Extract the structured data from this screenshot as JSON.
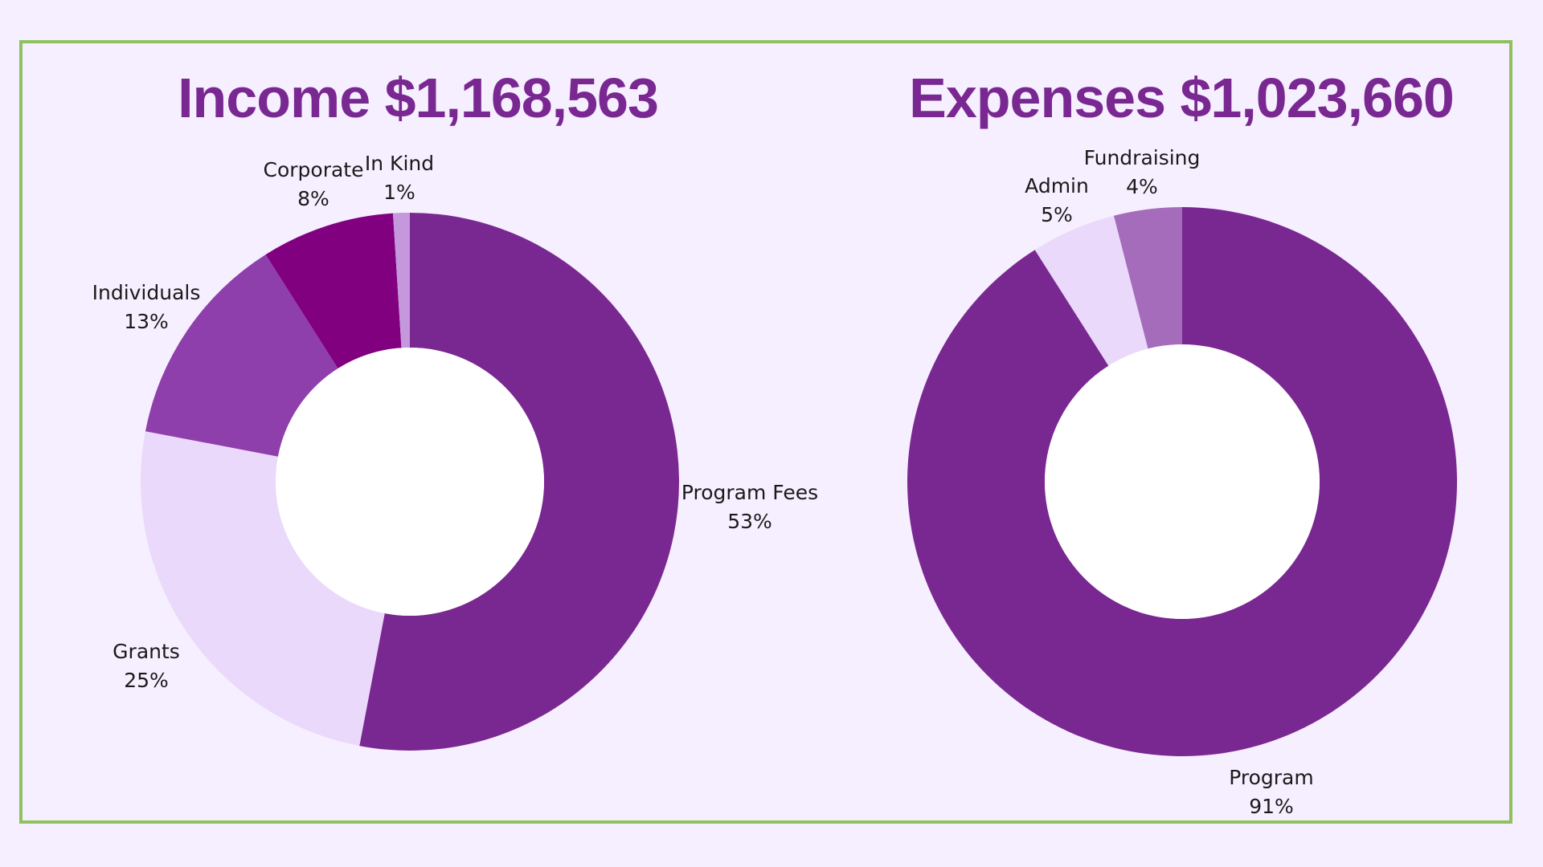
{
  "chart_data": [
    {
      "type": "pie",
      "donut": true,
      "title": "Income $1,168,563",
      "categories": [
        "Program Fees",
        "Grants",
        "Individuals",
        "Corporate",
        "In Kind"
      ],
      "values": [
        53,
        25,
        13,
        8,
        1
      ],
      "labels": [
        "53%",
        "25%",
        "13%",
        "8%",
        "1%"
      ],
      "colors": [
        "#7a2891",
        "#ead9fb",
        "#8e3fac",
        "#81007f",
        "#c597dc"
      ]
    },
    {
      "type": "pie",
      "donut": true,
      "title": "Expenses $1,023,660",
      "categories": [
        "Program",
        "Admin",
        "Fundraising"
      ],
      "values": [
        91,
        5,
        4
      ],
      "labels": [
        "91%",
        "5%",
        "4%"
      ],
      "colors": [
        "#7a2891",
        "#ead9fb",
        "#a56cbb"
      ]
    }
  ],
  "colors": {
    "background": "#f6efff",
    "border": "#8fc15e",
    "title": "#7a2891"
  }
}
